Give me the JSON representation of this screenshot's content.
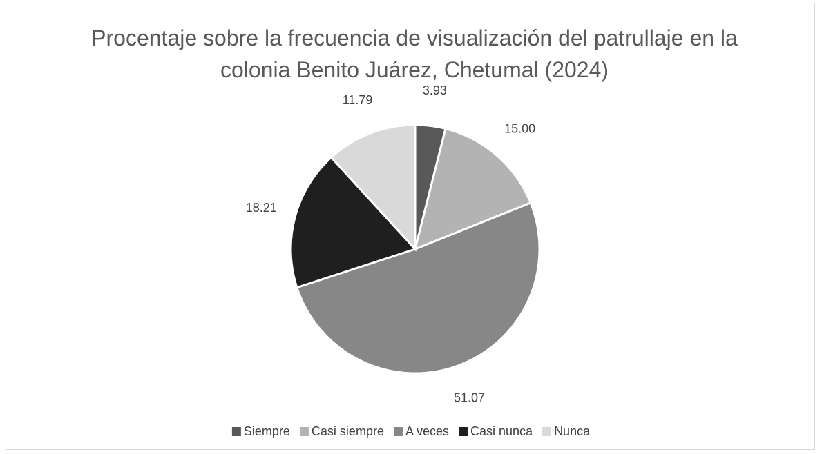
{
  "chart_data": {
    "type": "pie",
    "title": "Procentaje sobre la frecuencia de visualización del patrullaje en la colonia Benito Juárez, Chetumal (2024)",
    "categories": [
      "Siempre",
      "Casi siempre",
      "A veces",
      "Casi nunca",
      "Nunca"
    ],
    "values": [
      3.93,
      15.0,
      51.07,
      18.21,
      11.79
    ],
    "value_labels": [
      "3.93",
      "15.00",
      "51.07",
      "18.21",
      "11.79"
    ],
    "colors": [
      "#595959",
      "#b3b3b3",
      "#878787",
      "#1f1f1f",
      "#d9d9d9"
    ],
    "legend": "bottom"
  }
}
